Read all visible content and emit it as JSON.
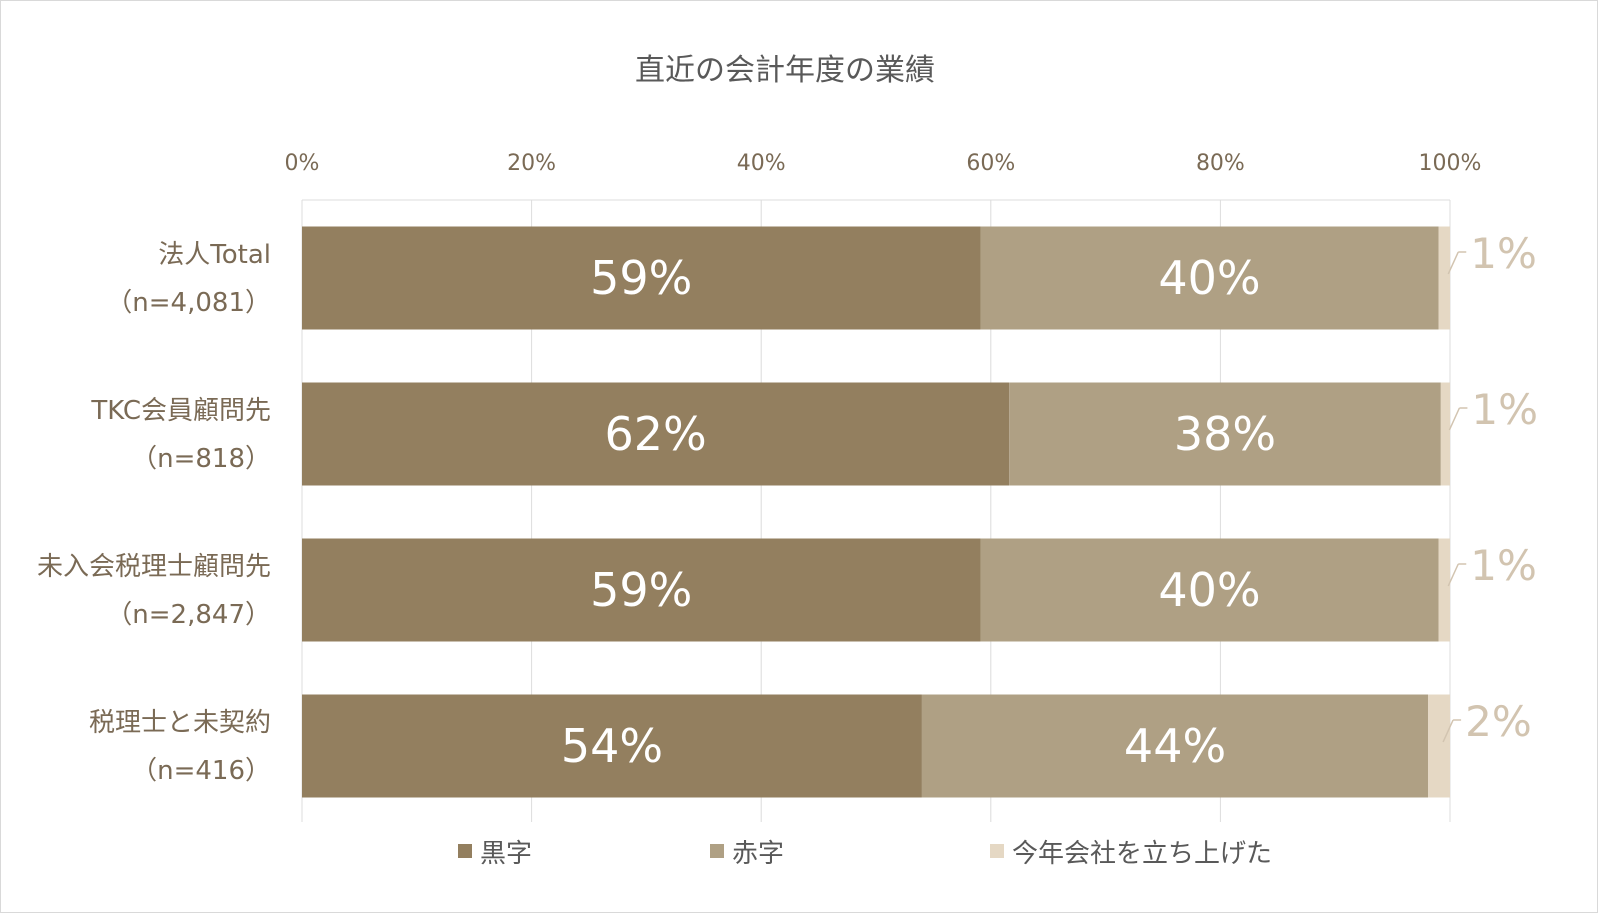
{
  "chart_data": {
    "type": "bar",
    "orientation": "horizontal",
    "stacked": true,
    "title": "直近の会計年度の業績",
    "xlim": [
      0,
      100
    ],
    "x_ticks": [
      "0%",
      "20%",
      "40%",
      "60%",
      "80%",
      "100%"
    ],
    "x_axis_position": "top",
    "grid": true,
    "categories": [
      [
        "法人Total",
        "（n=4,081）"
      ],
      [
        "TKC会員顧問先",
        "（n=818）"
      ],
      [
        "未入会税理士顧問先",
        "（n=2,847）"
      ],
      [
        "税理士と未契約",
        "（n=416）"
      ]
    ],
    "series": [
      {
        "name": "黒字",
        "color": "#937f5f",
        "values": [
          59.1,
          61.6,
          59.1,
          54.0
        ],
        "labels": [
          "59%",
          "62%",
          "59%",
          "54%"
        ]
      },
      {
        "name": "赤字",
        "color": "#afa084",
        "values": [
          39.9,
          37.6,
          39.9,
          44.1
        ],
        "labels": [
          "40%",
          "38%",
          "40%",
          "44%"
        ]
      },
      {
        "name": "今年会社を立ち上げた",
        "color": "#e5d8c4",
        "values": [
          1.0,
          0.8,
          1.0,
          1.9
        ],
        "labels": [
          "1%",
          "1%",
          "1%",
          "2%"
        ]
      }
    ],
    "legend_position": "bottom"
  }
}
